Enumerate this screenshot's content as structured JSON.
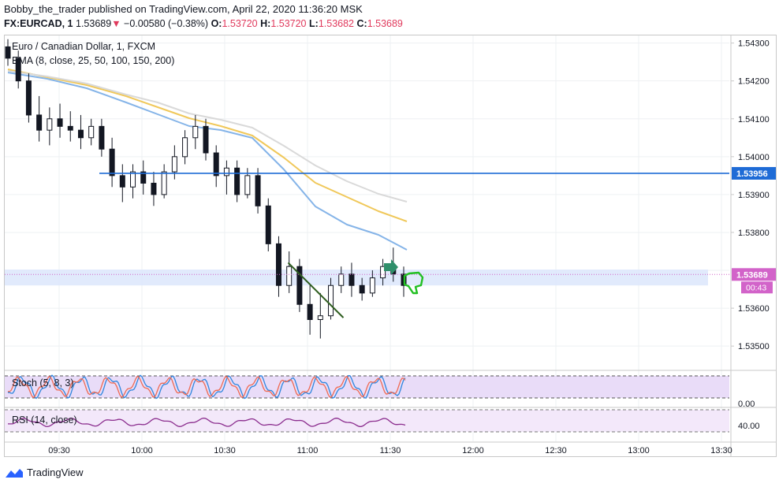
{
  "header": {
    "publisher_line": "Bobby_the_trader published on TradingView.com, April 22, 2020 11:36:20 MSK",
    "symbol": "FX:EURCAD, 1",
    "last": "1.53689",
    "change": "−0.00580 (−0.38%)",
    "ohlc": {
      "o_label": "O:",
      "o": "1.53720",
      "h_label": "H:",
      "h": "1.53720",
      "l_label": "L:",
      "l": "1.53682",
      "c_label": "C:",
      "c": "1.53689"
    }
  },
  "legend": {
    "main_title": "Euro / Canadian Dollar, 1, FXCM",
    "ema": "EMA (8, close, 25, 50, 100, 150, 200)",
    "stoch": "Stoch (5, 8, 3)",
    "rsi": "RSI (14, close)"
  },
  "price_axis": {
    "labels": [
      "1.54300",
      "1.54200",
      "1.54100",
      "1.54000",
      "1.53900",
      "1.53800",
      "1.53600",
      "1.53500"
    ],
    "resistance_label": "1.53956",
    "current_label": "1.53689",
    "countdown": "00:43"
  },
  "stoch_axis": {
    "labels": [
      "0.00"
    ]
  },
  "rsi_axis": {
    "labels": [
      "40.00"
    ]
  },
  "time_axis": {
    "labels": [
      "09:30",
      "10:00",
      "10:30",
      "11:00",
      "11:30",
      "12:00",
      "12:30",
      "13:00",
      "13:30"
    ]
  },
  "footer": {
    "brand": "TradingView"
  },
  "colors": {
    "up": "#131722",
    "down": "#131722",
    "ema_fast": "#85b4e8",
    "ema_mid": "#f0c85a",
    "ema_slow": "#d9d9d9",
    "resistance": "#1e6bd6",
    "zone": "#dce6fb",
    "current": "#d263c9",
    "trendline": "#2e5d1f",
    "stoch_k": "#2e86de",
    "stoch_d": "#ef6a52",
    "rsi": "#8b2d8e",
    "arrow": "#2f8f6a",
    "thumb": "#22c022"
  },
  "chart_data": {
    "type": "candlestick",
    "title": "Euro / Canadian Dollar, 1, FXCM",
    "y_range": [
      1.5344,
      1.5432
    ],
    "resistance": 1.53956,
    "current_price": 1.53689,
    "zone": [
      1.5366,
      1.53702
    ],
    "trendline": [
      {
        "t": "10:53",
        "p": 1.5372
      },
      {
        "t": "11:13",
        "p": 1.53575
      }
    ],
    "candles": [
      {
        "o": 1.5429,
        "h": 1.5431,
        "l": 1.5424,
        "c": 1.5426
      },
      {
        "o": 1.5426,
        "h": 1.5428,
        "l": 1.5418,
        "c": 1.542
      },
      {
        "o": 1.542,
        "h": 1.5422,
        "l": 1.5409,
        "c": 1.5411
      },
      {
        "o": 1.5411,
        "h": 1.5416,
        "l": 1.5404,
        "c": 1.5407
      },
      {
        "o": 1.5407,
        "h": 1.5413,
        "l": 1.5403,
        "c": 1.541
      },
      {
        "o": 1.541,
        "h": 1.5414,
        "l": 1.5405,
        "c": 1.5408
      },
      {
        "o": 1.5408,
        "h": 1.5412,
        "l": 1.5404,
        "c": 1.5407
      },
      {
        "o": 1.5407,
        "h": 1.5411,
        "l": 1.5402,
        "c": 1.5405
      },
      {
        "o": 1.5405,
        "h": 1.541,
        "l": 1.5403,
        "c": 1.5408
      },
      {
        "o": 1.5408,
        "h": 1.541,
        "l": 1.54,
        "c": 1.5402
      },
      {
        "o": 1.5402,
        "h": 1.5405,
        "l": 1.5392,
        "c": 1.5395
      },
      {
        "o": 1.5395,
        "h": 1.5398,
        "l": 1.5388,
        "c": 1.5392
      },
      {
        "o": 1.5392,
        "h": 1.5398,
        "l": 1.5389,
        "c": 1.5396
      },
      {
        "o": 1.5396,
        "h": 1.5399,
        "l": 1.539,
        "c": 1.5393
      },
      {
        "o": 1.5393,
        "h": 1.5396,
        "l": 1.5387,
        "c": 1.539
      },
      {
        "o": 1.539,
        "h": 1.5398,
        "l": 1.5389,
        "c": 1.5396
      },
      {
        "o": 1.5396,
        "h": 1.5403,
        "l": 1.5394,
        "c": 1.54
      },
      {
        "o": 1.54,
        "h": 1.5407,
        "l": 1.5398,
        "c": 1.5405
      },
      {
        "o": 1.5405,
        "h": 1.5411,
        "l": 1.5402,
        "c": 1.5408
      },
      {
        "o": 1.5408,
        "h": 1.541,
        "l": 1.5399,
        "c": 1.5401
      },
      {
        "o": 1.5401,
        "h": 1.5403,
        "l": 1.5392,
        "c": 1.5395
      },
      {
        "o": 1.5395,
        "h": 1.5399,
        "l": 1.539,
        "c": 1.5397
      },
      {
        "o": 1.5397,
        "h": 1.5399,
        "l": 1.5388,
        "c": 1.539
      },
      {
        "o": 1.539,
        "h": 1.5397,
        "l": 1.5389,
        "c": 1.5395
      },
      {
        "o": 1.5395,
        "h": 1.5397,
        "l": 1.5385,
        "c": 1.5387
      },
      {
        "o": 1.5387,
        "h": 1.5389,
        "l": 1.5375,
        "c": 1.5377
      },
      {
        "o": 1.5377,
        "h": 1.5379,
        "l": 1.5363,
        "c": 1.5366
      },
      {
        "o": 1.5366,
        "h": 1.5375,
        "l": 1.5364,
        "c": 1.5371
      },
      {
        "o": 1.5371,
        "h": 1.5373,
        "l": 1.5359,
        "c": 1.5361
      },
      {
        "o": 1.5361,
        "h": 1.5366,
        "l": 1.5353,
        "c": 1.5357
      },
      {
        "o": 1.5357,
        "h": 1.5364,
        "l": 1.5352,
        "c": 1.5358
      },
      {
        "o": 1.5358,
        "h": 1.5368,
        "l": 1.5357,
        "c": 1.5366
      },
      {
        "o": 1.5366,
        "h": 1.5371,
        "l": 1.5364,
        "c": 1.5369
      },
      {
        "o": 1.5369,
        "h": 1.5372,
        "l": 1.5363,
        "c": 1.5366
      },
      {
        "o": 1.5366,
        "h": 1.5368,
        "l": 1.5362,
        "c": 1.5364
      },
      {
        "o": 1.5364,
        "h": 1.537,
        "l": 1.5363,
        "c": 1.5368
      },
      {
        "o": 1.5368,
        "h": 1.5373,
        "l": 1.5366,
        "c": 1.5371
      },
      {
        "o": 1.5371,
        "h": 1.5376,
        "l": 1.5367,
        "c": 1.5369
      },
      {
        "o": 1.5369,
        "h": 1.5371,
        "l": 1.5363,
        "c": 1.5366
      }
    ]
  }
}
